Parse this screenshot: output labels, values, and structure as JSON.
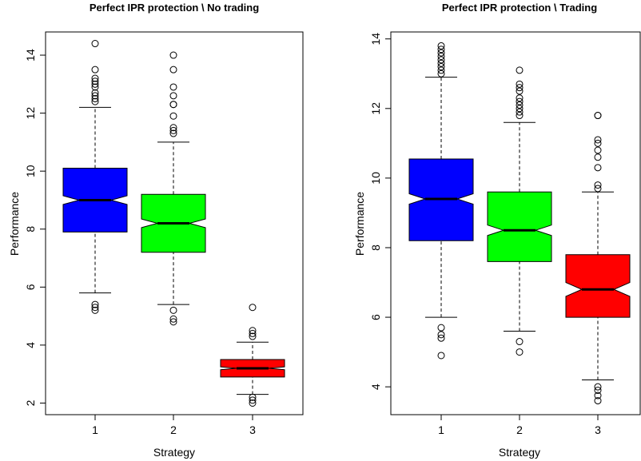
{
  "chart_data": [
    {
      "type": "box",
      "title": "Perfect IPR protection \\ No trading",
      "xlabel": "Strategy",
      "ylabel": "Performance",
      "categories": [
        "1",
        "2",
        "3"
      ],
      "yticks": [
        2,
        4,
        6,
        8,
        10,
        12,
        14
      ],
      "ylim": [
        1.6,
        14.8
      ],
      "notched": true,
      "boxes": [
        {
          "category": "1",
          "color": "#0000ff",
          "whisker_low": 5.8,
          "q1": 7.9,
          "median": 9.0,
          "q3": 10.1,
          "whisker_high": 12.2,
          "notch": [
            8.85,
            9.15
          ],
          "outliers": [
            5.2,
            5.3,
            5.4,
            12.4,
            12.5,
            12.6,
            12.7,
            12.9,
            13.0,
            13.1,
            13.2,
            13.5,
            14.4
          ]
        },
        {
          "category": "2",
          "color": "#00ff00",
          "whisker_low": 5.4,
          "q1": 7.2,
          "median": 8.2,
          "q3": 9.2,
          "whisker_high": 11.0,
          "notch": [
            8.05,
            8.35
          ],
          "outliers": [
            4.8,
            4.9,
            5.2,
            11.3,
            11.4,
            11.5,
            11.9,
            12.3,
            12.3,
            12.6,
            12.9,
            13.5,
            14.0
          ]
        },
        {
          "category": "3",
          "color": "#ff0000",
          "whisker_low": 2.3,
          "q1": 2.9,
          "median": 3.2,
          "q3": 3.5,
          "whisker_high": 4.1,
          "notch": [
            3.15,
            3.25
          ],
          "outliers": [
            2.0,
            2.1,
            2.2,
            4.3,
            4.4,
            4.5,
            5.3
          ]
        }
      ]
    },
    {
      "type": "box",
      "title": "Perfect IPR protection \\ Trading",
      "xlabel": "Strategy",
      "ylabel": "Performance",
      "categories": [
        "1",
        "2",
        "3"
      ],
      "yticks": [
        4,
        6,
        8,
        10,
        12,
        14
      ],
      "ylim": [
        3.2,
        14.2
      ],
      "notched": true,
      "boxes": [
        {
          "category": "1",
          "color": "#0000ff",
          "whisker_low": 6.0,
          "q1": 8.2,
          "median": 9.4,
          "q3": 10.55,
          "whisker_high": 12.9,
          "notch": [
            9.25,
            9.55
          ],
          "outliers": [
            4.9,
            5.4,
            5.5,
            5.7,
            13.0,
            13.1,
            13.2,
            13.3,
            13.4,
            13.5,
            13.6,
            13.7,
            13.8
          ]
        },
        {
          "category": "2",
          "color": "#00ff00",
          "whisker_low": 5.6,
          "q1": 7.6,
          "median": 8.5,
          "q3": 9.6,
          "whisker_high": 11.6,
          "notch": [
            8.35,
            8.65
          ],
          "outliers": [
            5.0,
            5.3,
            11.8,
            11.9,
            12.0,
            12.1,
            12.2,
            12.3,
            12.5,
            12.6,
            12.7,
            13.1
          ]
        },
        {
          "category": "3",
          "color": "#ff0000",
          "whisker_low": 4.2,
          "q1": 6.0,
          "median": 6.8,
          "q3": 7.8,
          "whisker_high": 9.6,
          "notch": [
            6.6,
            7.0
          ],
          "outliers": [
            3.6,
            3.75,
            3.9,
            4.0,
            9.7,
            9.8,
            10.3,
            10.6,
            10.8,
            11.0,
            11.1,
            11.8,
            11.8
          ]
        }
      ]
    }
  ]
}
